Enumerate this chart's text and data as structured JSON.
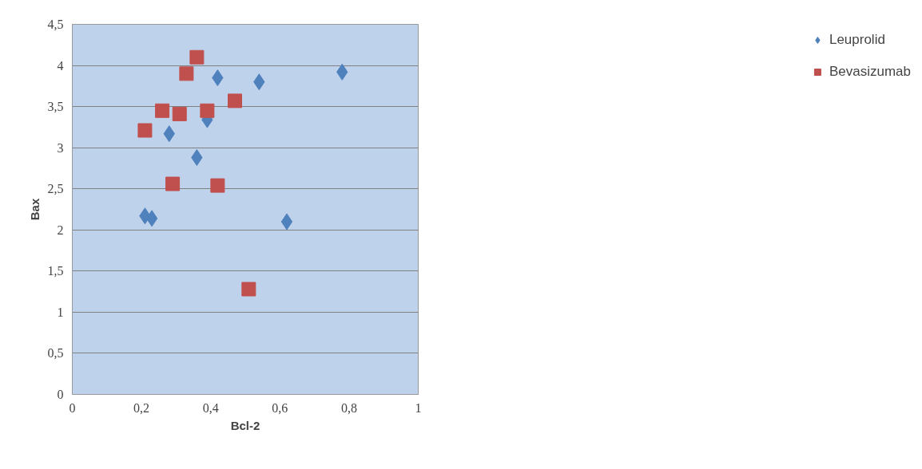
{
  "chart_data": {
    "type": "scatter",
    "xlabel": "Bcl-2",
    "ylabel": "Bax",
    "xlim": [
      0,
      1
    ],
    "ylim": [
      0,
      4.5
    ],
    "xticks": [
      0,
      {
        "value": 0.2,
        "label": "0,2"
      },
      {
        "value": 0.4,
        "label": "0,4"
      },
      {
        "value": 0.6,
        "label": "0,6"
      },
      {
        "value": 0.8,
        "label": "0,8"
      },
      1
    ],
    "yticks": [
      0,
      {
        "value": 0.5,
        "label": "0,5"
      },
      1,
      {
        "value": 1.5,
        "label": "1,5"
      },
      2,
      {
        "value": 2.5,
        "label": "2,5"
      },
      3,
      {
        "value": 3.5,
        "label": "3,5"
      },
      4,
      {
        "value": 4.5,
        "label": "4,5"
      }
    ],
    "grid": "y",
    "legend": "right",
    "series": [
      {
        "name": "Leuprolid",
        "color": "#4f81bd",
        "marker": "diamond",
        "x": [
          0.21,
          0.23,
          0.28,
          0.36,
          0.39,
          0.42,
          0.54,
          0.62,
          0.78
        ],
        "values": [
          2.17,
          2.14,
          3.17,
          2.88,
          3.34,
          3.85,
          3.8,
          2.1,
          3.92
        ]
      },
      {
        "name": "Bevasizumab",
        "color": "#c0504d",
        "marker": "square",
        "x": [
          0.21,
          0.26,
          0.31,
          0.33,
          0.36,
          0.39,
          0.47,
          0.29,
          0.42,
          0.51
        ],
        "values": [
          3.21,
          3.45,
          3.41,
          3.9,
          4.1,
          3.45,
          3.57,
          2.56,
          2.54,
          1.28
        ]
      }
    ]
  }
}
